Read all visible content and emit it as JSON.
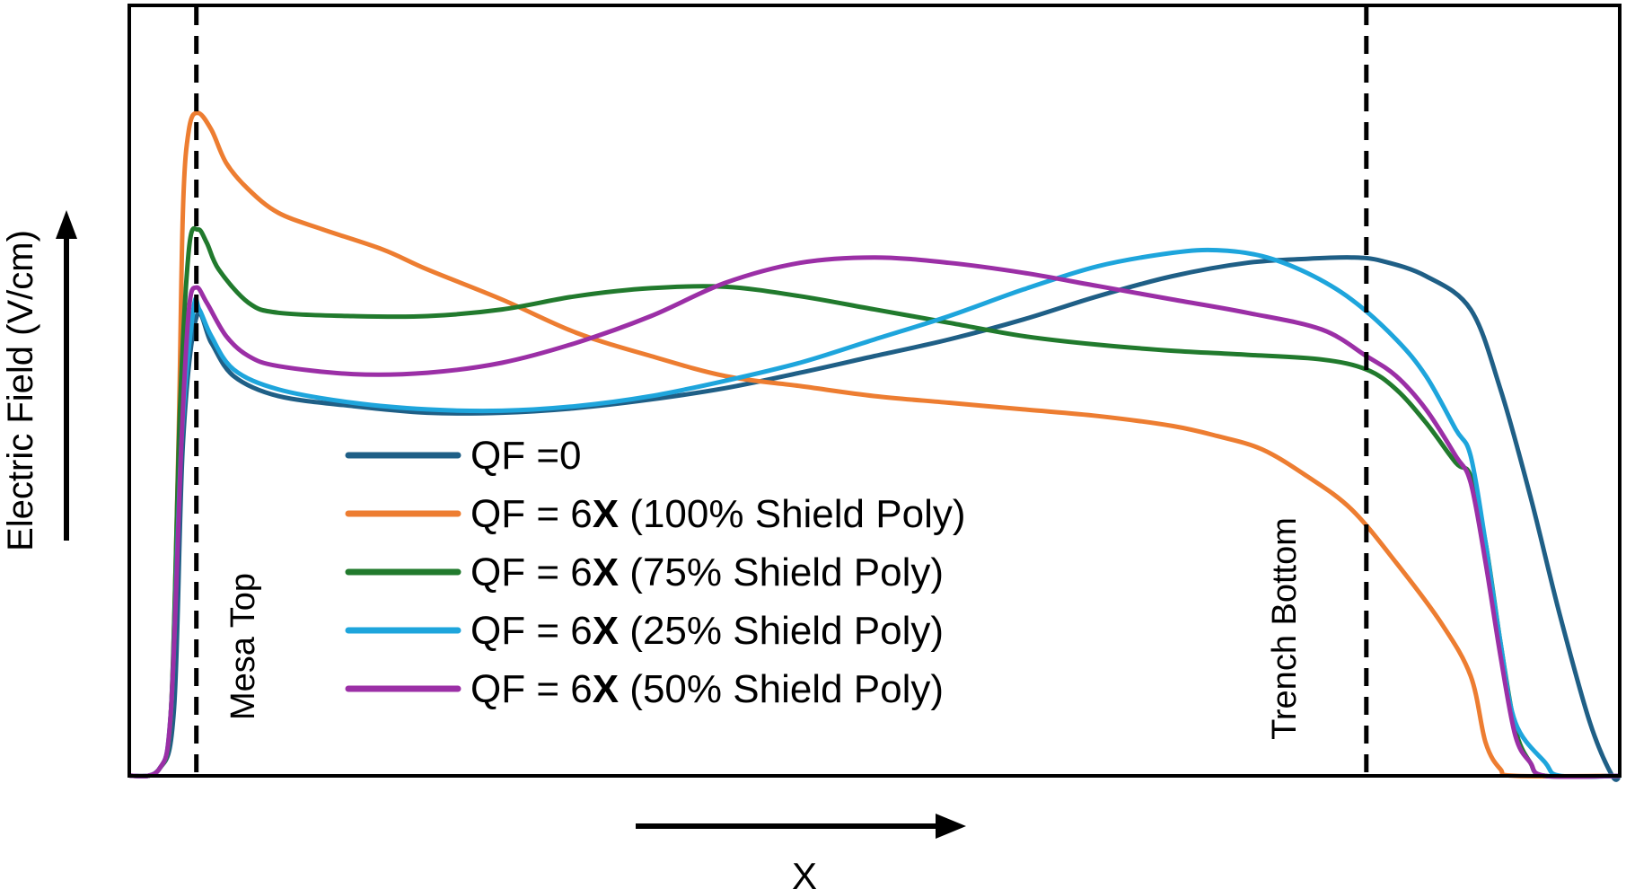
{
  "chart_data": {
    "type": "line",
    "title": "",
    "xlabel": "X",
    "ylabel": "Electric Field (V/cm)",
    "xlim": [
      0,
      1
    ],
    "ylim": [
      0,
      1
    ],
    "grid": false,
    "legend_position": "center-left",
    "annotations": [
      {
        "label": "Mesa Top",
        "x": 0.045
      },
      {
        "label": "Trench Bottom",
        "x": 0.83
      }
    ],
    "series": [
      {
        "name": "QF =0",
        "legend_parts": [
          "QF =0"
        ],
        "color": "#1f5f86",
        "points": [
          [
            0,
            0
          ],
          [
            0.02,
            0.01
          ],
          [
            0.03,
            0.1
          ],
          [
            0.036,
            0.5
          ],
          [
            0.045,
            0.688
          ],
          [
            0.055,
            0.65
          ],
          [
            0.07,
            0.6
          ],
          [
            0.1,
            0.57
          ],
          [
            0.15,
            0.555
          ],
          [
            0.2,
            0.545
          ],
          [
            0.25,
            0.545
          ],
          [
            0.3,
            0.552
          ],
          [
            0.35,
            0.565
          ],
          [
            0.4,
            0.582
          ],
          [
            0.45,
            0.605
          ],
          [
            0.5,
            0.63
          ],
          [
            0.55,
            0.655
          ],
          [
            0.6,
            0.685
          ],
          [
            0.65,
            0.72
          ],
          [
            0.7,
            0.75
          ],
          [
            0.75,
            0.77
          ],
          [
            0.79,
            0.776
          ],
          [
            0.82,
            0.778
          ],
          [
            0.84,
            0.773
          ],
          [
            0.87,
            0.75
          ],
          [
            0.9,
            0.7
          ],
          [
            0.92,
            0.58
          ],
          [
            0.94,
            0.42
          ],
          [
            0.96,
            0.24
          ],
          [
            0.98,
            0.08
          ],
          [
            0.995,
            0.0
          ],
          [
            1,
            0
          ]
        ]
      },
      {
        "name": "QF = 6X (100% Shield Poly)",
        "legend_parts": [
          "QF = 6",
          "X",
          " (100% Shield Poly)"
        ],
        "color": "#ed7d31",
        "points": [
          [
            0,
            0
          ],
          [
            0.02,
            0.01
          ],
          [
            0.028,
            0.1
          ],
          [
            0.033,
            0.5
          ],
          [
            0.036,
            0.85
          ],
          [
            0.04,
            0.97
          ],
          [
            0.046,
            0.995
          ],
          [
            0.055,
            0.97
          ],
          [
            0.065,
            0.92
          ],
          [
            0.08,
            0.88
          ],
          [
            0.1,
            0.845
          ],
          [
            0.13,
            0.82
          ],
          [
            0.17,
            0.79
          ],
          [
            0.2,
            0.76
          ],
          [
            0.25,
            0.715
          ],
          [
            0.3,
            0.665
          ],
          [
            0.35,
            0.63
          ],
          [
            0.4,
            0.6
          ],
          [
            0.45,
            0.585
          ],
          [
            0.5,
            0.57
          ],
          [
            0.55,
            0.56
          ],
          [
            0.6,
            0.55
          ],
          [
            0.65,
            0.54
          ],
          [
            0.7,
            0.525
          ],
          [
            0.73,
            0.51
          ],
          [
            0.76,
            0.49
          ],
          [
            0.79,
            0.45
          ],
          [
            0.82,
            0.4
          ],
          [
            0.85,
            0.32
          ],
          [
            0.88,
            0.23
          ],
          [
            0.9,
            0.15
          ],
          [
            0.91,
            0.05
          ],
          [
            0.92,
            0.01
          ],
          [
            0.93,
            0.0
          ],
          [
            1,
            0
          ]
        ]
      },
      {
        "name": "QF = 6X (75% Shield Poly)",
        "legend_parts": [
          "QF = 6",
          "X",
          " (75% Shield Poly)"
        ],
        "color": "#217a2d",
        "points": [
          [
            0,
            0
          ],
          [
            0.02,
            0.01
          ],
          [
            0.028,
            0.1
          ],
          [
            0.034,
            0.55
          ],
          [
            0.04,
            0.79
          ],
          [
            0.046,
            0.82
          ],
          [
            0.052,
            0.8
          ],
          [
            0.06,
            0.76
          ],
          [
            0.08,
            0.71
          ],
          [
            0.1,
            0.695
          ],
          [
            0.15,
            0.69
          ],
          [
            0.2,
            0.69
          ],
          [
            0.25,
            0.7
          ],
          [
            0.3,
            0.72
          ],
          [
            0.35,
            0.732
          ],
          [
            0.4,
            0.734
          ],
          [
            0.45,
            0.72
          ],
          [
            0.5,
            0.7
          ],
          [
            0.55,
            0.68
          ],
          [
            0.6,
            0.66
          ],
          [
            0.65,
            0.647
          ],
          [
            0.7,
            0.638
          ],
          [
            0.75,
            0.632
          ],
          [
            0.8,
            0.625
          ],
          [
            0.83,
            0.61
          ],
          [
            0.85,
            0.58
          ],
          [
            0.87,
            0.53
          ],
          [
            0.89,
            0.47
          ],
          [
            0.9,
            0.45
          ],
          [
            0.91,
            0.35
          ],
          [
            0.92,
            0.2
          ],
          [
            0.93,
            0.07
          ],
          [
            0.94,
            0.02
          ],
          [
            0.95,
            0.0
          ],
          [
            1,
            0
          ]
        ]
      },
      {
        "name": "QF = 6X (25% Shield Poly)",
        "legend_parts": [
          "QF = 6",
          "X",
          " (25% Shield Poly)"
        ],
        "color": "#1ea5dc",
        "points": [
          [
            0,
            0
          ],
          [
            0.02,
            0.01
          ],
          [
            0.028,
            0.1
          ],
          [
            0.035,
            0.5
          ],
          [
            0.043,
            0.7
          ],
          [
            0.047,
            0.7
          ],
          [
            0.055,
            0.66
          ],
          [
            0.07,
            0.61
          ],
          [
            0.1,
            0.58
          ],
          [
            0.15,
            0.56
          ],
          [
            0.2,
            0.55
          ],
          [
            0.25,
            0.548
          ],
          [
            0.3,
            0.555
          ],
          [
            0.35,
            0.57
          ],
          [
            0.4,
            0.593
          ],
          [
            0.45,
            0.62
          ],
          [
            0.5,
            0.655
          ],
          [
            0.55,
            0.69
          ],
          [
            0.6,
            0.73
          ],
          [
            0.65,
            0.765
          ],
          [
            0.7,
            0.785
          ],
          [
            0.73,
            0.789
          ],
          [
            0.76,
            0.78
          ],
          [
            0.79,
            0.755
          ],
          [
            0.82,
            0.715
          ],
          [
            0.85,
            0.655
          ],
          [
            0.87,
            0.6
          ],
          [
            0.89,
            0.52
          ],
          [
            0.9,
            0.48
          ],
          [
            0.91,
            0.35
          ],
          [
            0.92,
            0.2
          ],
          [
            0.93,
            0.08
          ],
          [
            0.95,
            0.02
          ],
          [
            0.96,
            0.0
          ],
          [
            1,
            0
          ]
        ]
      },
      {
        "name": "QF = 6X (50% Shield Poly)",
        "legend_parts": [
          "QF = 6",
          "X",
          " (50% Shield Poly)"
        ],
        "color": "#9b2fa6",
        "points": [
          [
            0,
            0
          ],
          [
            0.02,
            0.01
          ],
          [
            0.028,
            0.1
          ],
          [
            0.035,
            0.5
          ],
          [
            0.04,
            0.7
          ],
          [
            0.045,
            0.733
          ],
          [
            0.052,
            0.71
          ],
          [
            0.065,
            0.66
          ],
          [
            0.08,
            0.63
          ],
          [
            0.1,
            0.615
          ],
          [
            0.15,
            0.603
          ],
          [
            0.2,
            0.605
          ],
          [
            0.25,
            0.62
          ],
          [
            0.3,
            0.65
          ],
          [
            0.35,
            0.69
          ],
          [
            0.4,
            0.74
          ],
          [
            0.45,
            0.77
          ],
          [
            0.5,
            0.778
          ],
          [
            0.55,
            0.77
          ],
          [
            0.6,
            0.755
          ],
          [
            0.65,
            0.735
          ],
          [
            0.7,
            0.715
          ],
          [
            0.75,
            0.695
          ],
          [
            0.8,
            0.67
          ],
          [
            0.83,
            0.63
          ],
          [
            0.85,
            0.6
          ],
          [
            0.87,
            0.55
          ],
          [
            0.89,
            0.48
          ],
          [
            0.9,
            0.44
          ],
          [
            0.91,
            0.32
          ],
          [
            0.92,
            0.18
          ],
          [
            0.93,
            0.06
          ],
          [
            0.94,
            0.02
          ],
          [
            0.95,
            0.0
          ],
          [
            1,
            0
          ]
        ]
      }
    ]
  }
}
